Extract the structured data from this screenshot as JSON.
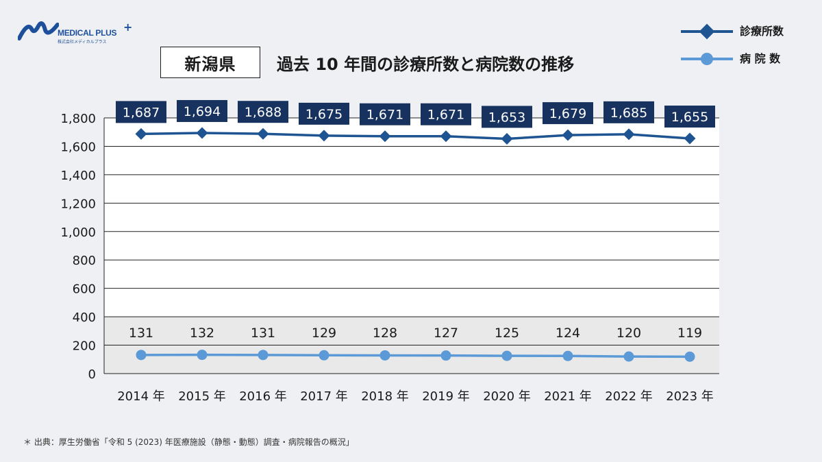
{
  "logo": {
    "name": "MEDICAL PLUS",
    "plus": "+",
    "sub": "株式会社メディカルプラス"
  },
  "header": {
    "prefecture": "新潟県",
    "title": "過去 10 年間の診療所数と病院数の推移"
  },
  "legend": [
    {
      "label": "診療所数",
      "color": "#1e5491"
    },
    {
      "label": "病 院 数",
      "color": "#5b9ad6"
    }
  ],
  "source": "＊ 出典：厚生労働省「令和 5 (2023) 年医療施設（静態・動態）調査・病院報告の概況」",
  "chart_data": {
    "type": "line",
    "categories": [
      "2014 年",
      "2015 年",
      "2016 年",
      "2017 年",
      "2018 年",
      "2019 年",
      "2020 年",
      "2021 年",
      "2022 年",
      "2023 年"
    ],
    "series": [
      {
        "name": "診療所数",
        "values": [
          1687,
          1694,
          1688,
          1675,
          1671,
          1671,
          1653,
          1679,
          1685,
          1655
        ],
        "labels": [
          "1,687",
          "1,694",
          "1,688",
          "1,675",
          "1,671",
          "1,671",
          "1,653",
          "1,679",
          "1,685",
          "1,655"
        ],
        "color": "#1e5491",
        "marker": "diamond",
        "label_box_color": "#17325f"
      },
      {
        "name": "病 院 数",
        "values": [
          131,
          132,
          131,
          129,
          128,
          127,
          125,
          124,
          120,
          119
        ],
        "labels": [
          "131",
          "132",
          "131",
          "129",
          "128",
          "127",
          "125",
          "124",
          "120",
          "119"
        ],
        "color": "#5b9ad6",
        "marker": "circle"
      }
    ],
    "ylim": [
      0,
      1800
    ],
    "yticks": [
      0,
      200,
      400,
      600,
      800,
      1000,
      1200,
      1400,
      1600,
      1800
    ],
    "ytick_labels": [
      "0",
      "200",
      "400",
      "600",
      "800",
      "1,000",
      "1,200",
      "1,400",
      "1,600",
      "1,800"
    ],
    "grid": true,
    "legend_position": "top-right"
  }
}
